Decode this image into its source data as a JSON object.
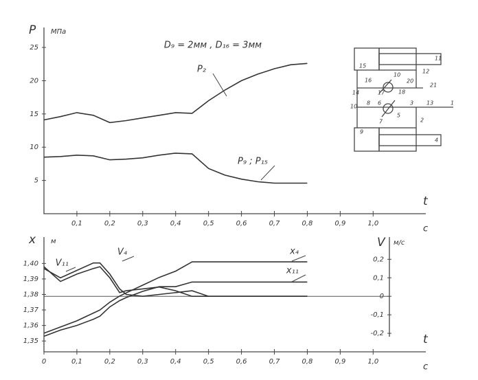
{
  "chart_data": [
    {
      "type": "line",
      "title": "D₉ = 2мм , D₁₆ = 3мм",
      "y_label": "P",
      "y_unit": "МПа",
      "x_label": "t",
      "x_unit": "с",
      "x": [
        0,
        0.05,
        0.1,
        0.15,
        0.2,
        0.25,
        0.3,
        0.35,
        0.4,
        0.45,
        0.5,
        0.55,
        0.6,
        0.65,
        0.7,
        0.75,
        0.8
      ],
      "series": [
        {
          "name": "P₂",
          "color": "#333333",
          "values": [
            14.1,
            14.6,
            15.2,
            14.8,
            13.7,
            14.0,
            14.4,
            14.8,
            15.2,
            15.1,
            17.0,
            18.6,
            20.0,
            21.0,
            21.8,
            22.4,
            22.6
          ]
        },
        {
          "name": "P₉ ; P₁₅",
          "color": "#333333",
          "values": [
            8.5,
            8.6,
            8.8,
            8.7,
            8.1,
            8.2,
            8.4,
            8.8,
            9.1,
            9.0,
            6.8,
            5.8,
            5.2,
            4.8,
            4.6,
            4.6,
            4.6
          ]
        }
      ],
      "xlim": [
        0,
        1.16
      ],
      "ylim": [
        0,
        28
      ],
      "xticks": [
        {
          "value": 0.1,
          "label": "0,1"
        },
        {
          "value": 0.2,
          "label": "0,2"
        },
        {
          "value": 0.3,
          "label": "0,3"
        },
        {
          "value": 0.4,
          "label": "0,4"
        },
        {
          "value": 0.5,
          "label": "0,5"
        },
        {
          "value": 0.6,
          "label": "0,6"
        },
        {
          "value": 0.7,
          "label": "0,7"
        },
        {
          "value": 0.8,
          "label": "0,8"
        },
        {
          "value": 0.9,
          "label": "0,9"
        },
        {
          "value": 1.0,
          "label": "1,0"
        }
      ],
      "yticks": [
        5,
        10,
        15,
        20,
        25
      ]
    },
    {
      "type": "line",
      "y_label": "x",
      "y_unit": "м",
      "y2_label": "V",
      "y2_unit": "м/с",
      "x_label": "t",
      "x_unit": "с",
      "x": [
        0,
        0.05,
        0.1,
        0.15,
        0.17,
        0.2,
        0.23,
        0.25,
        0.3,
        0.35,
        0.4,
        0.45,
        0.5,
        0.6,
        0.7,
        0.8
      ],
      "series": [
        {
          "name": "V₁₁",
          "color": "#333333",
          "axis": "y2",
          "values": [
            0.16,
            0.08,
            0.12,
            0.15,
            0.16,
            0.1,
            0.02,
            0.03,
            0.04,
            0.05,
            0.03,
            0,
            0,
            0,
            0,
            0
          ]
        },
        {
          "name": "V₄",
          "color": "#333333",
          "axis": "y2",
          "values": [
            0.15,
            0.1,
            0.14,
            0.18,
            0.18,
            0.12,
            0.04,
            0.01,
            0.0,
            0.01,
            0.02,
            0.03,
            0,
            0,
            0,
            0
          ]
        },
        {
          "name": "x₄",
          "color": "#333333",
          "values": [
            1.355,
            1.359,
            1.363,
            1.368,
            1.37,
            1.375,
            1.379,
            1.381,
            1.386,
            1.391,
            1.395,
            1.401,
            1.401,
            1.401,
            1.401,
            1.401
          ]
        },
        {
          "name": "x₁₁",
          "color": "#333333",
          "values": [
            1.353,
            1.357,
            1.36,
            1.364,
            1.366,
            1.372,
            1.376,
            1.378,
            1.382,
            1.385,
            1.385,
            1.388,
            1.388,
            1.388,
            1.388,
            1.388
          ]
        }
      ],
      "xlim": [
        0,
        1.16
      ],
      "ylim": [
        1.343,
        1.417
      ],
      "y2lim": [
        -0.3,
        0.32
      ],
      "xticks": [
        {
          "value": 0,
          "label": "0"
        },
        {
          "value": 0.1,
          "label": "0,1"
        },
        {
          "value": 0.2,
          "label": "0,2"
        },
        {
          "value": 0.3,
          "label": "0,3"
        },
        {
          "value": 0.4,
          "label": "0,4"
        },
        {
          "value": 0.5,
          "label": "0,5"
        },
        {
          "value": 0.6,
          "label": "0,6"
        },
        {
          "value": 0.7,
          "label": "0,7"
        },
        {
          "value": 0.8,
          "label": "0,8"
        },
        {
          "value": 0.9,
          "label": "0,9"
        },
        {
          "value": 1.0,
          "label": "1,0"
        }
      ],
      "yticks": [
        {
          "value": 1.35,
          "label": "1,35"
        },
        {
          "value": 1.36,
          "label": "1,36"
        },
        {
          "value": 1.37,
          "label": "1,37"
        },
        {
          "value": 1.38,
          "label": "1,38"
        },
        {
          "value": 1.39,
          "label": "1,39"
        },
        {
          "value": 1.4,
          "label": "1,40"
        }
      ],
      "y2ticks": [
        {
          "value": 0.2,
          "label": "0,2"
        },
        {
          "value": 0.1,
          "label": "0,1"
        },
        0,
        {
          "value": -0.1,
          "label": "-0,1"
        },
        {
          "value": -0.2,
          "label": "-0,2"
        }
      ]
    }
  ],
  "schematic": {
    "labels": [
      "11",
      "15",
      "12",
      "16",
      "10",
      "20",
      "21",
      "17",
      "18",
      "14",
      "8",
      "6",
      "3",
      "13",
      "1",
      "10",
      "5",
      "7",
      "2",
      "9",
      "4"
    ]
  }
}
